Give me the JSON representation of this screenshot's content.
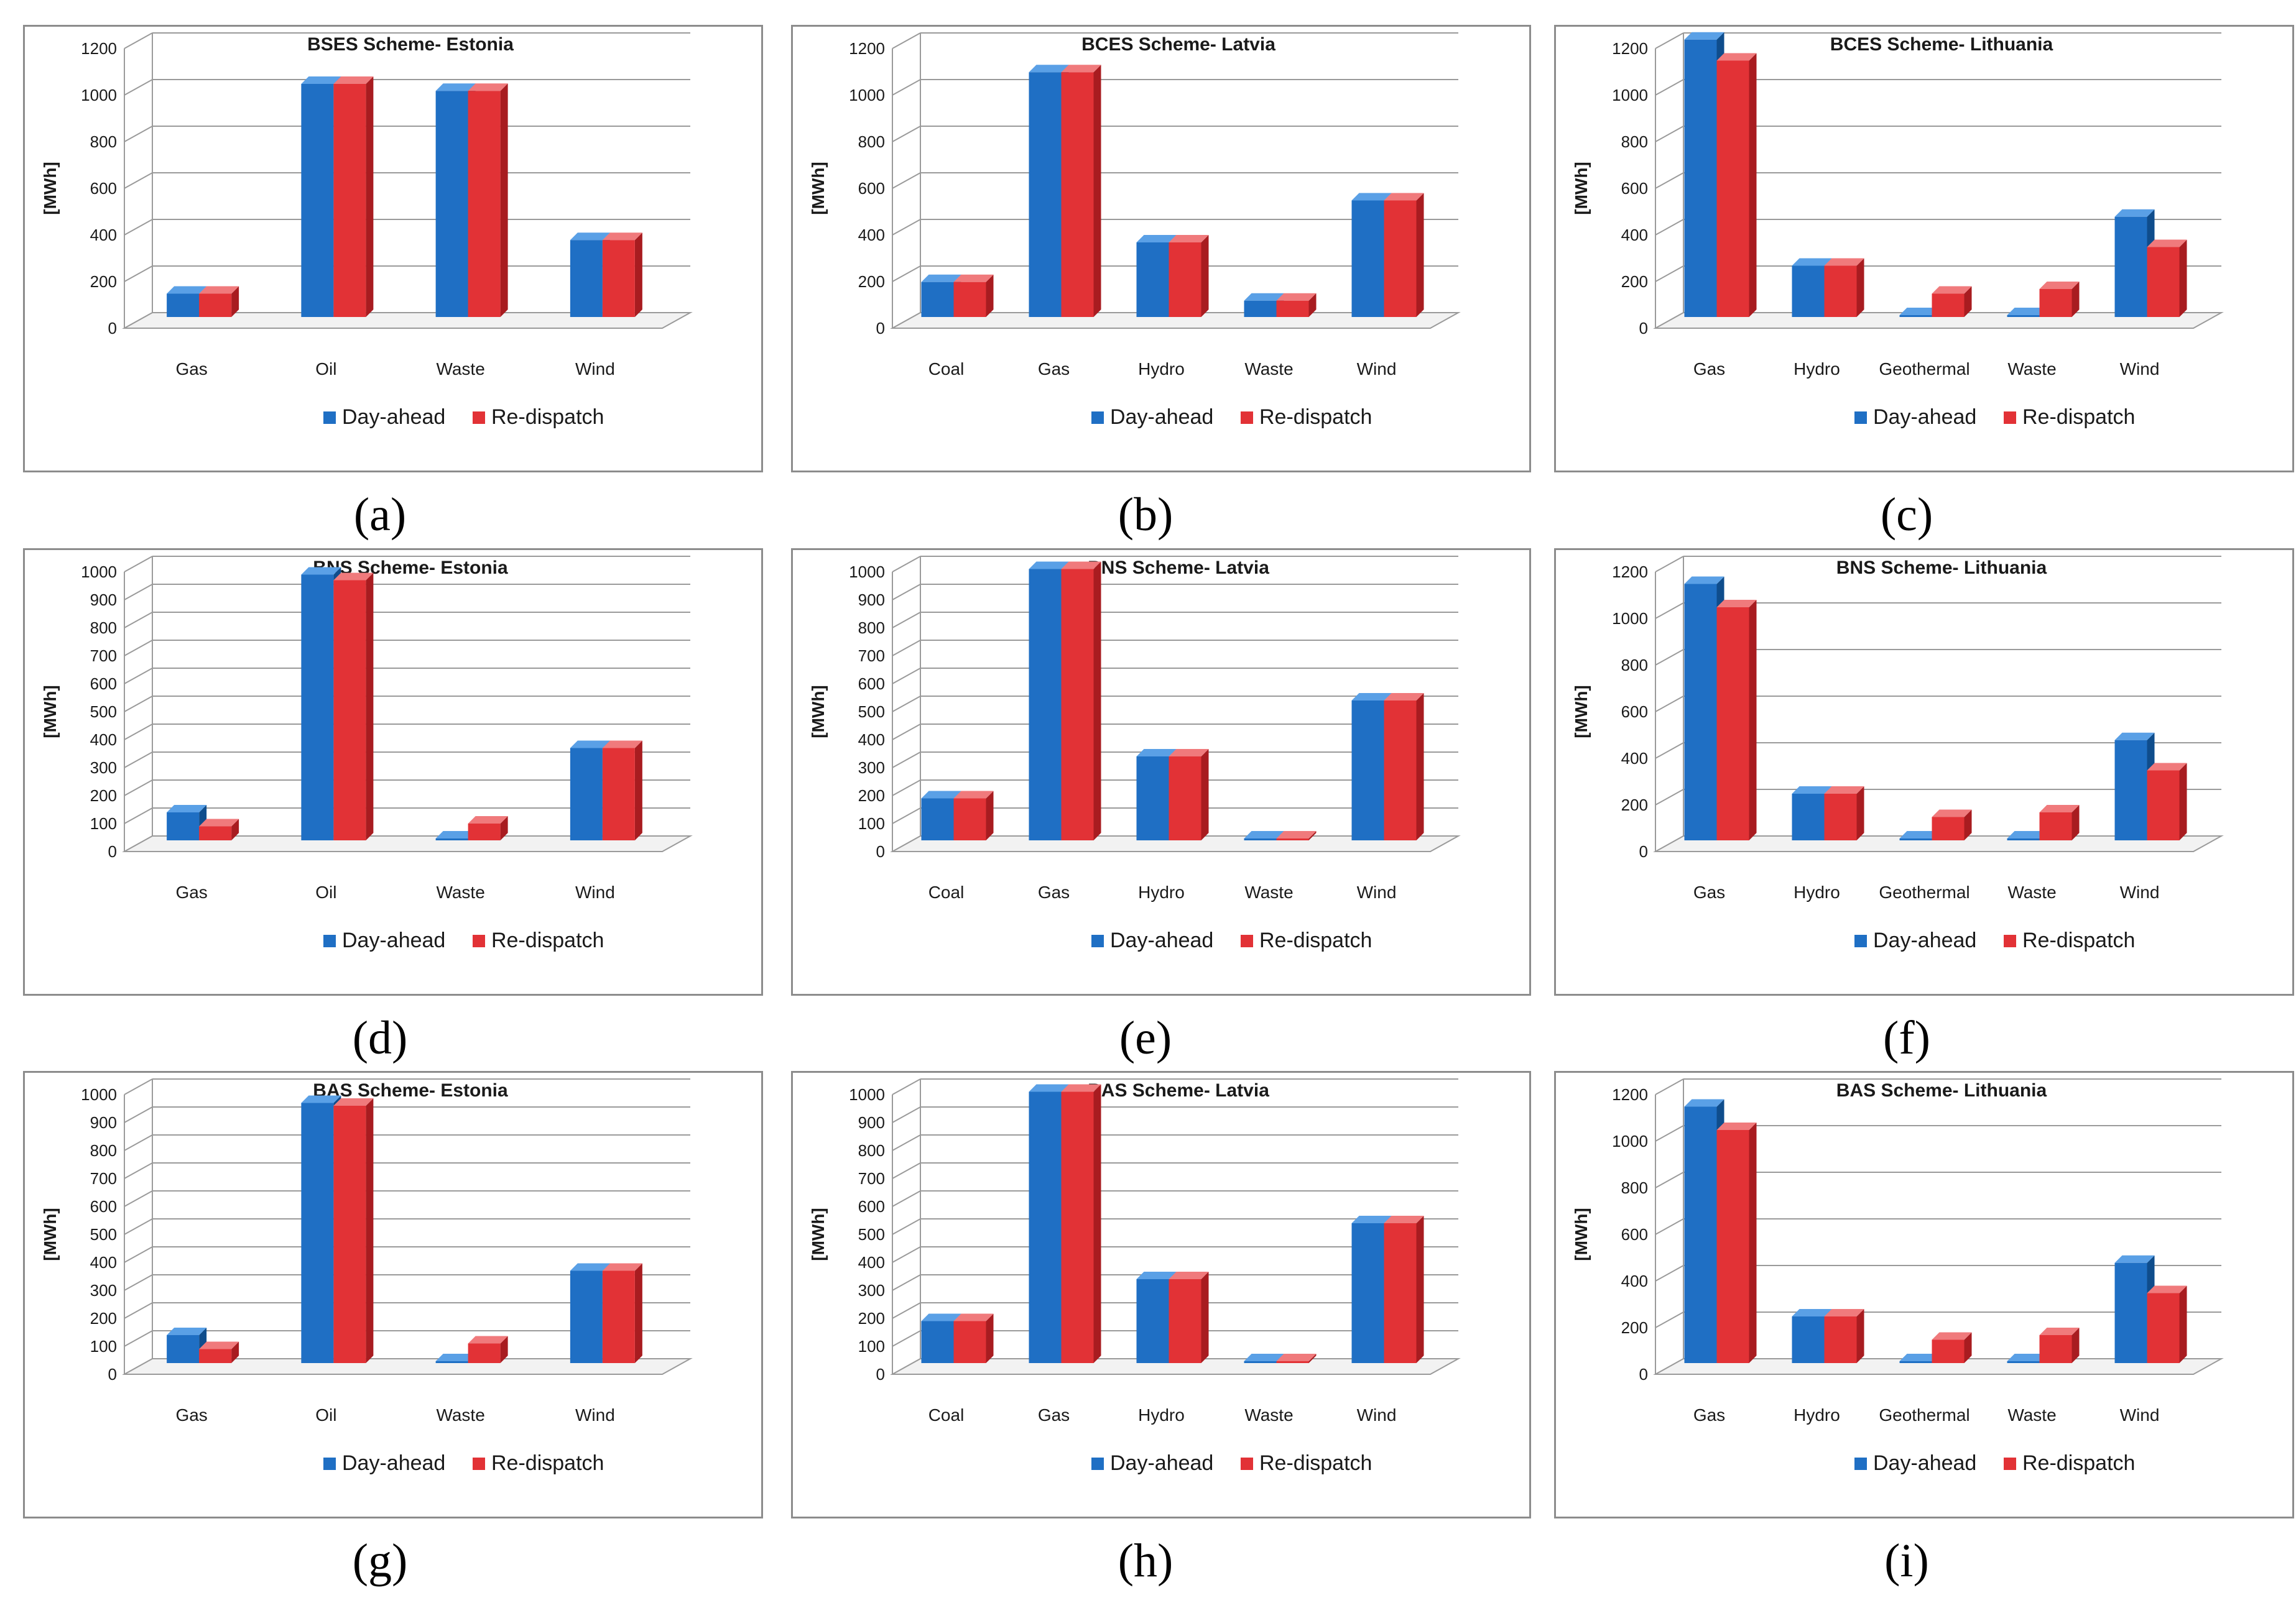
{
  "colors": {
    "day_ahead": {
      "front": "#1f6fc4",
      "side": "#0f4d8c",
      "top": "#5aa0e6"
    },
    "re_dispatch": {
      "front": "#e23236",
      "side": "#a81c20",
      "top": "#f07a7c"
    }
  },
  "chart_data": [
    {
      "id": "a",
      "label": "(a)",
      "type": "bar",
      "title": "BSES Scheme- Estonia",
      "ylabel": "[MWh]",
      "ylim": [
        0,
        1200
      ],
      "ytick_step": 200,
      "categories": [
        "Gas",
        "Oil",
        "Waste",
        "Wind"
      ],
      "series": [
        {
          "name": "Day-ahead",
          "values": [
            100,
            1000,
            970,
            330
          ]
        },
        {
          "name": "Re-dispatch",
          "values": [
            100,
            1000,
            970,
            330
          ]
        }
      ]
    },
    {
      "id": "b",
      "label": "(b)",
      "type": "bar",
      "title": "BCES Scheme- Latvia",
      "ylabel": "[MWh]",
      "ylim": [
        0,
        1200
      ],
      "ytick_step": 200,
      "categories": [
        "Coal",
        "Gas",
        "Hydro",
        "Waste",
        "Wind"
      ],
      "series": [
        {
          "name": "Day-ahead",
          "values": [
            150,
            1050,
            320,
            70,
            500
          ]
        },
        {
          "name": "Re-dispatch",
          "values": [
            150,
            1050,
            320,
            70,
            500
          ]
        }
      ]
    },
    {
      "id": "c",
      "label": "(c)",
      "type": "bar",
      "title": "BCES Scheme- Lithuania",
      "ylabel": "[MWh]",
      "ylim": [
        0,
        1200
      ],
      "ytick_step": 200,
      "categories": [
        "Gas",
        "Hydro",
        "Geothermal",
        "Waste",
        "Wind"
      ],
      "series": [
        {
          "name": "Day-ahead",
          "values": [
            1190,
            220,
            0,
            0,
            430
          ]
        },
        {
          "name": "Re-dispatch",
          "values": [
            1100,
            220,
            100,
            120,
            300
          ]
        }
      ]
    },
    {
      "id": "d",
      "label": "(d)",
      "type": "bar",
      "title": "BNS Scheme- Estonia",
      "ylabel": "[MWh]",
      "ylim": [
        0,
        1000
      ],
      "ytick_step": 100,
      "categories": [
        "Gas",
        "Oil",
        "Waste",
        "Wind"
      ],
      "series": [
        {
          "name": "Day-ahead",
          "values": [
            100,
            950,
            0,
            330
          ]
        },
        {
          "name": "Re-dispatch",
          "values": [
            50,
            930,
            60,
            330
          ]
        }
      ]
    },
    {
      "id": "e",
      "label": "(e)",
      "type": "bar",
      "title": "BNS Scheme- Latvia",
      "ylabel": "[MWh]",
      "ylim": [
        0,
        1000
      ],
      "ytick_step": 100,
      "categories": [
        "Coal",
        "Gas",
        "Hydro",
        "Waste",
        "Wind"
      ],
      "series": [
        {
          "name": "Day-ahead",
          "values": [
            150,
            970,
            300,
            0,
            500
          ]
        },
        {
          "name": "Re-dispatch",
          "values": [
            150,
            970,
            300,
            0,
            500
          ]
        }
      ]
    },
    {
      "id": "f",
      "label": "(f)",
      "type": "bar",
      "title": "BNS Scheme- Lithuania",
      "ylabel": "[MWh]",
      "ylim": [
        0,
        1200
      ],
      "ytick_step": 200,
      "categories": [
        "Gas",
        "Hydro",
        "Geothermal",
        "Waste",
        "Wind"
      ],
      "series": [
        {
          "name": "Day-ahead",
          "values": [
            1100,
            200,
            0,
            0,
            430
          ]
        },
        {
          "name": "Re-dispatch",
          "values": [
            1000,
            200,
            100,
            120,
            300
          ]
        }
      ]
    },
    {
      "id": "g",
      "label": "(g)",
      "type": "bar",
      "title": "BAS Scheme- Estonia",
      "ylabel": "[MWh]",
      "ylim": [
        0,
        1000
      ],
      "ytick_step": 100,
      "categories": [
        "Gas",
        "Oil",
        "Waste",
        "Wind"
      ],
      "series": [
        {
          "name": "Day-ahead",
          "values": [
            100,
            930,
            0,
            330
          ]
        },
        {
          "name": "Re-dispatch",
          "values": [
            50,
            920,
            70,
            330
          ]
        }
      ]
    },
    {
      "id": "h",
      "label": "(h)",
      "type": "bar",
      "title": "BAS Scheme- Latvia",
      "ylabel": "[MWh]",
      "ylim": [
        0,
        1000
      ],
      "ytick_step": 100,
      "categories": [
        "Coal",
        "Gas",
        "Hydro",
        "Waste",
        "Wind"
      ],
      "series": [
        {
          "name": "Day-ahead",
          "values": [
            150,
            970,
            300,
            0,
            500
          ]
        },
        {
          "name": "Re-dispatch",
          "values": [
            150,
            970,
            300,
            0,
            500
          ]
        }
      ]
    },
    {
      "id": "i",
      "label": "(i)",
      "type": "bar",
      "title": "BAS Scheme- Lithuania",
      "ylabel": "[MWh]",
      "ylim": [
        0,
        1200
      ],
      "ytick_step": 200,
      "categories": [
        "Gas",
        "Hydro",
        "Geothermal",
        "Waste",
        "Wind"
      ],
      "series": [
        {
          "name": "Day-ahead",
          "values": [
            1100,
            200,
            0,
            0,
            430
          ]
        },
        {
          "name": "Re-dispatch",
          "values": [
            1000,
            200,
            100,
            120,
            300
          ]
        }
      ]
    }
  ]
}
